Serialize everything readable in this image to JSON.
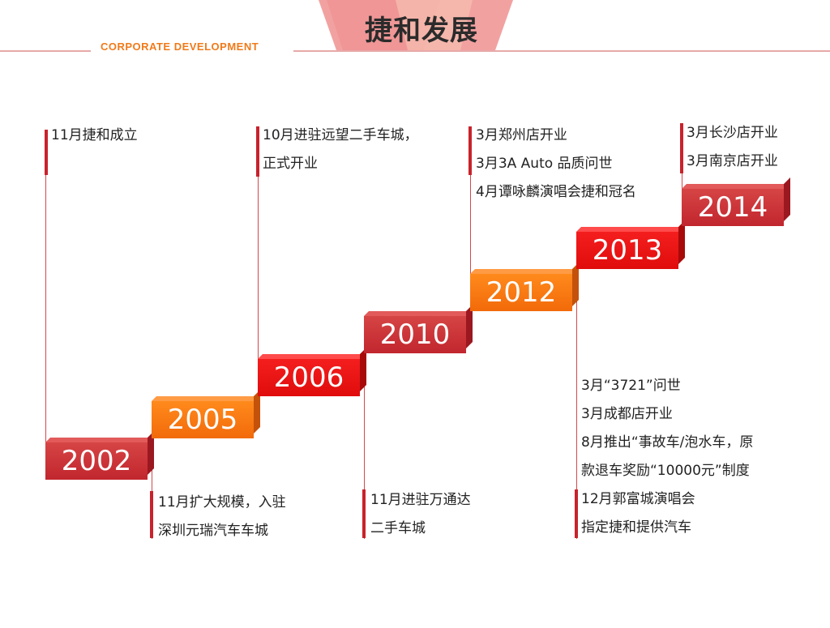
{
  "header": {
    "title": "捷和发展",
    "subtitle": "CORPORATE  DEVELOPMENT"
  },
  "milestones": [
    {
      "year": "2002",
      "lines": [
        "11月捷和成立"
      ]
    },
    {
      "year": "2005",
      "lines": [
        "11月扩大规模，入驻",
        "深圳元瑞汽车车城"
      ]
    },
    {
      "year": "2006",
      "lines": [
        "10月进驻远望二手车城，",
        "正式开业"
      ]
    },
    {
      "year": "2010",
      "lines": [
        "11月进驻万通达",
        "二手车城"
      ]
    },
    {
      "year": "2012",
      "lines": [
        "3月郑州店开业",
        "3月3A Auto 品质问世",
        "4月谭咏麟演唱会捷和冠名"
      ]
    },
    {
      "year": "2013",
      "lines": [
        "3月“3721”问世",
        "3月成都店开业",
        "8月推出“事故车/泡水车，原",
        "款退车奖励“10000元”制度",
        "12月郭富城演唱会",
        "指定捷和提供汽车"
      ]
    },
    {
      "year": "2014",
      "lines": [
        "3月长沙店开业",
        "3月南京店开业"
      ]
    }
  ],
  "colors": {
    "accent_red": "#c8232c",
    "accent_orange": "#f26a0a",
    "bright_red": "#e00c0c",
    "subtitle_orange": "#f07a1a"
  }
}
